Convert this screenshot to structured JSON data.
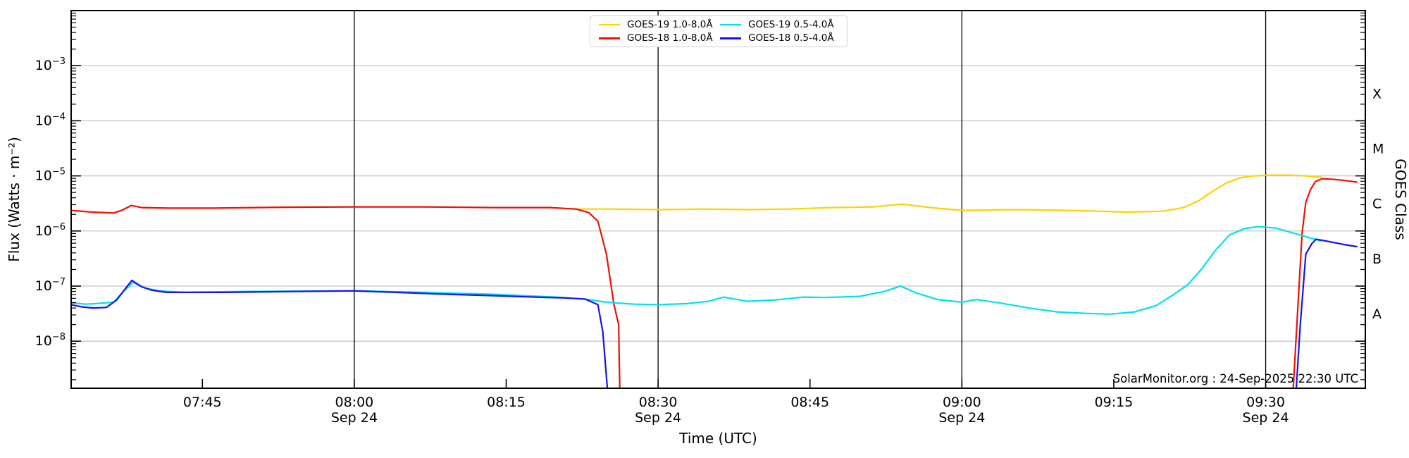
{
  "annotation": "SolarMonitor.org : 24-Sep-2025 22:30 UTC",
  "chart_data": {
    "type": "line",
    "title": "",
    "xlabel": "Time (UTC)",
    "ylabel": "Flux (Watts · m⁻²)",
    "ylabel_right": "GOES Class",
    "x_axis_date": "Sep 24",
    "x_range_hours": [
      7.534,
      9.664
    ],
    "y_range_exponent": [
      -2.0,
      -8.854
    ],
    "grid": "horizontal-decades",
    "legend_position": "top-center",
    "vline_hours": [
      8.0,
      8.5,
      9.0,
      9.5
    ],
    "x_ticks": [
      {
        "label": "07:45",
        "date": "",
        "hour": 7.75
      },
      {
        "label": "08:00",
        "date": "Sep 24",
        "hour": 8.0
      },
      {
        "label": "08:15",
        "date": "",
        "hour": 8.25
      },
      {
        "label": "08:30",
        "date": "Sep 24",
        "hour": 8.5
      },
      {
        "label": "08:45",
        "date": "",
        "hour": 8.75
      },
      {
        "label": "09:00",
        "date": "Sep 24",
        "hour": 9.0
      },
      {
        "label": "09:15",
        "date": "",
        "hour": 9.25
      },
      {
        "label": "09:30",
        "date": "Sep 24",
        "hour": 9.5
      }
    ],
    "y_ticks": [
      {
        "base": "10",
        "exp": "−3",
        "value": 0.001
      },
      {
        "base": "10",
        "exp": "−4",
        "value": 0.0001
      },
      {
        "base": "10",
        "exp": "−5",
        "value": 1e-05
      },
      {
        "base": "10",
        "exp": "−6",
        "value": 1e-06
      },
      {
        "base": "10",
        "exp": "−7",
        "value": 1e-07
      },
      {
        "base": "10",
        "exp": "−8",
        "value": 1e-08
      }
    ],
    "goes_class_labels": [
      {
        "text": "X",
        "center_exponent": -3.5
      },
      {
        "text": "M",
        "center_exponent": -4.5
      },
      {
        "text": "C",
        "center_exponent": -5.5
      },
      {
        "text": "B",
        "center_exponent": -6.5
      },
      {
        "text": "A",
        "center_exponent": -7.5
      }
    ],
    "series": [
      {
        "name": "GOES-19 1.0-8.0Å",
        "color": "#FFD200",
        "segments": [
          [
            [
              8.357,
              2.5e-06
            ],
            [
              8.415,
              2.5e-06
            ],
            [
              8.502,
              2.44e-06
            ],
            [
              8.577,
              2.5e-06
            ],
            [
              8.647,
              2.44e-06
            ],
            [
              8.716,
              2.5e-06
            ],
            [
              8.786,
              2.66e-06
            ],
            [
              8.855,
              2.74e-06
            ],
            [
              8.902,
              3.08e-06
            ],
            [
              8.948,
              2.66e-06
            ],
            [
              9.0,
              2.36e-06
            ],
            [
              9.087,
              2.44e-06
            ],
            [
              9.18,
              2.36e-06
            ],
            [
              9.273,
              2.2e-06
            ],
            [
              9.331,
              2.28e-06
            ],
            [
              9.365,
              2.66e-06
            ],
            [
              9.389,
              3.5e-06
            ],
            [
              9.412,
              5.2e-06
            ],
            [
              9.435,
              7.4e-06
            ],
            [
              9.458,
              9.2e-06
            ],
            [
              9.481,
              1e-05
            ],
            [
              9.504,
              1.03e-05
            ],
            [
              9.539,
              1.03e-05
            ],
            [
              9.568,
              1e-05
            ],
            [
              9.592,
              9.4e-06
            ]
          ]
        ]
      },
      {
        "name": "GOES-18 1.0-8.0Å",
        "color": "#EE1100",
        "segments": [
          [
            [
              7.534,
              2.36e-06
            ],
            [
              7.569,
              2.2e-06
            ],
            [
              7.604,
              2.12e-06
            ],
            [
              7.617,
              2.36e-06
            ],
            [
              7.633,
              2.9e-06
            ],
            [
              7.65,
              2.66e-06
            ],
            [
              7.696,
              2.6e-06
            ],
            [
              7.766,
              2.6e-06
            ],
            [
              7.882,
              2.7e-06
            ],
            [
              8.0,
              2.74e-06
            ],
            [
              8.114,
              2.74e-06
            ],
            [
              8.229,
              2.66e-06
            ],
            [
              8.322,
              2.66e-06
            ],
            [
              8.365,
              2.5e-06
            ],
            [
              8.386,
              2.16e-06
            ],
            [
              8.401,
              1.5e-06
            ],
            [
              8.415,
              3.8e-07
            ],
            [
              8.427,
              4.8e-08
            ],
            [
              8.435,
              2e-08
            ],
            [
              8.437,
              1.2e-09
            ]
          ],
          [
            [
              9.545,
              1.2e-09
            ],
            [
              9.552,
              2.7e-08
            ],
            [
              9.56,
              9.2e-07
            ],
            [
              9.566,
              3.3e-06
            ],
            [
              9.574,
              5.7e-06
            ],
            [
              9.582,
              7.9e-06
            ],
            [
              9.593,
              8.9e-06
            ],
            [
              9.614,
              8.6e-06
            ],
            [
              9.637,
              8.1e-06
            ],
            [
              9.65,
              7.7e-06
            ]
          ]
        ]
      },
      {
        "name": "GOES-19 0.5-4.0Å",
        "color": "#00E0F0",
        "segments": [
          [
            [
              7.534,
              5e-08
            ],
            [
              7.557,
              4.7e-08
            ],
            [
              7.575,
              4.8e-08
            ],
            [
              7.604,
              5.1e-08
            ],
            [
              7.621,
              8.2e-08
            ],
            [
              7.636,
              1.17e-07
            ],
            [
              7.656,
              9.2e-08
            ],
            [
              7.679,
              8.2e-08
            ],
            [
              7.72,
              7.7e-08
            ],
            [
              7.824,
              8e-08
            ],
            [
              8.0,
              8.2e-08
            ],
            [
              8.114,
              7.7e-08
            ],
            [
              8.229,
              7.1e-08
            ],
            [
              8.334,
              6.3e-08
            ],
            [
              8.38,
              5.8e-08
            ],
            [
              8.415,
              5.1e-08
            ],
            [
              8.461,
              4.7e-08
            ],
            [
              8.502,
              4.6e-08
            ],
            [
              8.548,
              4.8e-08
            ],
            [
              8.583,
              5.3e-08
            ],
            [
              8.608,
              6.3e-08
            ],
            [
              8.647,
              5.3e-08
            ],
            [
              8.693,
              5.6e-08
            ],
            [
              8.739,
              6.3e-08
            ],
            [
              8.774,
              6.2e-08
            ],
            [
              8.832,
              6.5e-08
            ],
            [
              8.873,
              8e-08
            ],
            [
              8.899,
              1e-07
            ],
            [
              8.925,
              7.5e-08
            ],
            [
              8.96,
              5.7e-08
            ],
            [
              9.0,
              5.1e-08
            ],
            [
              9.023,
              5.7e-08
            ],
            [
              9.064,
              4.9e-08
            ],
            [
              9.11,
              4e-08
            ],
            [
              9.157,
              3.4e-08
            ],
            [
              9.203,
              3.2e-08
            ],
            [
              9.244,
              3.1e-08
            ],
            [
              9.284,
              3.4e-08
            ],
            [
              9.319,
              4.4e-08
            ],
            [
              9.344,
              6.5e-08
            ],
            [
              9.371,
              1.04e-07
            ],
            [
              9.394,
              2e-07
            ],
            [
              9.417,
              4.4e-07
            ],
            [
              9.44,
              8.4e-07
            ],
            [
              9.464,
              1.1e-06
            ],
            [
              9.487,
              1.2e-06
            ],
            [
              9.516,
              1.13e-06
            ],
            [
              9.55,
              8.9e-07
            ],
            [
              9.59,
              6.6e-07
            ]
          ]
        ]
      },
      {
        "name": "GOES-18 0.5-4.0Å",
        "color": "#1414F0",
        "segments": [
          [
            [
              7.534,
              4.6e-08
            ],
            [
              7.551,
              4.2e-08
            ],
            [
              7.57,
              4e-08
            ],
            [
              7.592,
              4.1e-08
            ],
            [
              7.609,
              5.6e-08
            ],
            [
              7.624,
              9.2e-08
            ],
            [
              7.634,
              1.27e-07
            ],
            [
              7.65,
              9.7e-08
            ],
            [
              7.667,
              8.4e-08
            ],
            [
              7.691,
              7.7e-08
            ],
            [
              7.789,
              7.7e-08
            ],
            [
              7.905,
              8e-08
            ],
            [
              8.0,
              8.2e-08
            ],
            [
              8.067,
              7.7e-08
            ],
            [
              8.137,
              7.2e-08
            ],
            [
              8.229,
              6.7e-08
            ],
            [
              8.299,
              6.3e-08
            ],
            [
              8.345,
              6.1e-08
            ],
            [
              8.38,
              5.8e-08
            ],
            [
              8.401,
              4.6e-08
            ],
            [
              8.409,
              1.5e-08
            ],
            [
              8.417,
              1.2e-09
            ]
          ],
          [
            [
              9.55,
              1.2e-09
            ],
            [
              9.557,
              2e-08
            ],
            [
              9.566,
              3.8e-07
            ],
            [
              9.576,
              5.9e-07
            ],
            [
              9.583,
              7.1e-07
            ],
            [
              9.608,
              6.3e-07
            ],
            [
              9.632,
              5.6e-07
            ],
            [
              9.65,
              5.2e-07
            ]
          ]
        ]
      }
    ],
    "colors": {
      "gridline": "#c2c2c2",
      "vline": "#000000",
      "axis": "#000000",
      "background": "#ffffff"
    }
  }
}
